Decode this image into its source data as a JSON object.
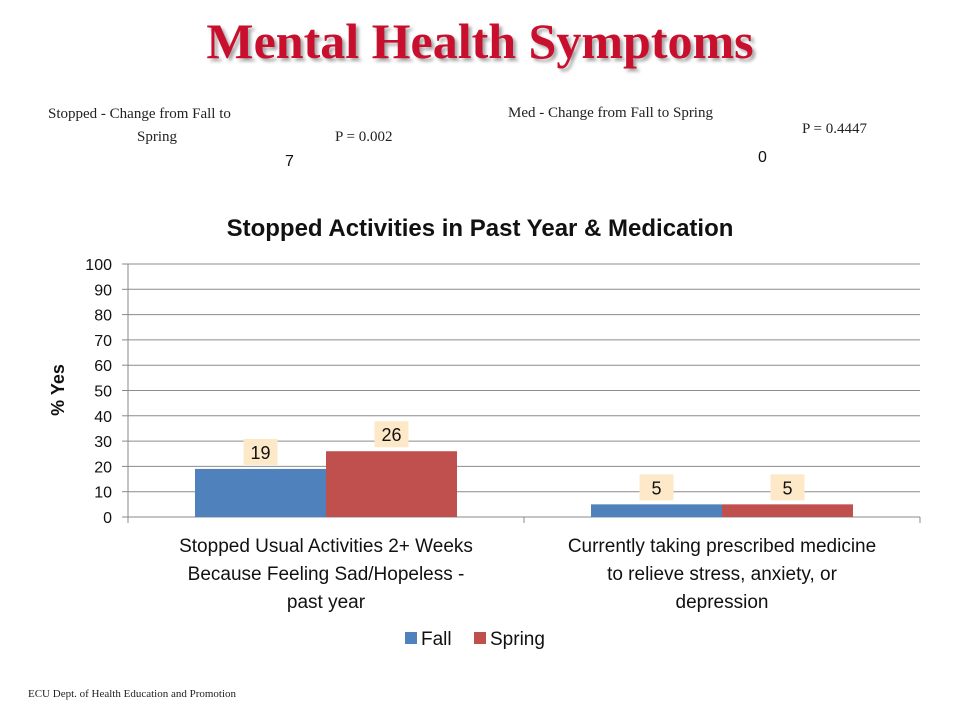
{
  "slide": {
    "title": "Mental Health Symptoms",
    "footer": "ECU Dept. of Health Education and Promotion"
  },
  "annotations": {
    "stopped_label_line1": "Stopped - Change  from Fall to",
    "stopped_label_line2": "Spring",
    "stopped_value": "7",
    "stopped_p": "P = 0.002",
    "med_label": "Med - Change  from Fall to Spring",
    "med_value": "0",
    "med_p": "P = 0.4447"
  },
  "chart_data": {
    "type": "bar",
    "title": "Stopped Activities in Past Year & Medication",
    "ylabel": "% Yes",
    "xlabel": "",
    "ylim": [
      0,
      100
    ],
    "yticks": [
      0,
      10,
      20,
      30,
      40,
      50,
      60,
      70,
      80,
      90,
      100
    ],
    "grid": true,
    "legend_position": "bottom",
    "categories": [
      [
        "Stopped Usual Activities 2+ Weeks",
        "Because Feeling Sad/Hopeless -",
        "past year"
      ],
      [
        "Currently taking prescribed medicine",
        "to relieve stress, anxiety, or",
        "depression"
      ]
    ],
    "series": [
      {
        "name": "Fall",
        "color": "#4f81bd",
        "values": [
          19,
          5
        ]
      },
      {
        "name": "Spring",
        "color": "#c0504d",
        "values": [
          26,
          5
        ]
      }
    ],
    "data_label_bg": "#fde9c8"
  }
}
